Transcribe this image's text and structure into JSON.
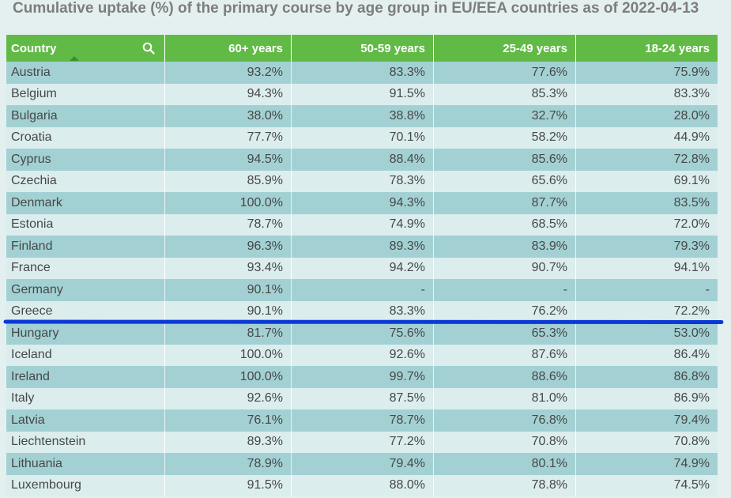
{
  "chart_data": {
    "type": "table",
    "title": "Cumulative uptake (%) of the primary course by age group in EU/EEA countries as of 2022-04-13",
    "columns": [
      "Country",
      "60+ years",
      "50-59 years",
      "25-49 years",
      "18-24 years"
    ],
    "rows": [
      [
        "Austria",
        "93.2%",
        "83.3%",
        "77.6%",
        "75.9%"
      ],
      [
        "Belgium",
        "94.3%",
        "91.5%",
        "85.3%",
        "83.3%"
      ],
      [
        "Bulgaria",
        "38.0%",
        "38.8%",
        "32.7%",
        "28.0%"
      ],
      [
        "Croatia",
        "77.7%",
        "70.1%",
        "58.2%",
        "44.9%"
      ],
      [
        "Cyprus",
        "94.5%",
        "88.4%",
        "85.6%",
        "72.8%"
      ],
      [
        "Czechia",
        "85.9%",
        "78.3%",
        "65.6%",
        "69.1%"
      ],
      [
        "Denmark",
        "100.0%",
        "94.3%",
        "87.7%",
        "83.5%"
      ],
      [
        "Estonia",
        "78.7%",
        "74.9%",
        "68.5%",
        "72.0%"
      ],
      [
        "Finland",
        "96.3%",
        "89.3%",
        "83.9%",
        "79.3%"
      ],
      [
        "France",
        "93.4%",
        "94.2%",
        "90.7%",
        "94.1%"
      ],
      [
        "Germany",
        "90.1%",
        "-",
        "-",
        "-"
      ],
      [
        "Greece",
        "90.1%",
        "83.3%",
        "76.2%",
        "72.2%"
      ],
      [
        "Hungary",
        "81.7%",
        "75.6%",
        "65.3%",
        "53.0%"
      ],
      [
        "Iceland",
        "100.0%",
        "92.6%",
        "87.6%",
        "86.4%"
      ],
      [
        "Ireland",
        "100.0%",
        "99.7%",
        "88.6%",
        "86.8%"
      ],
      [
        "Italy",
        "92.6%",
        "87.5%",
        "81.0%",
        "86.9%"
      ],
      [
        "Latvia",
        "76.1%",
        "78.7%",
        "76.8%",
        "79.4%"
      ],
      [
        "Liechtenstein",
        "89.3%",
        "77.2%",
        "70.8%",
        "70.8%"
      ],
      [
        "Lithuania",
        "78.9%",
        "79.4%",
        "80.1%",
        "74.9%"
      ],
      [
        "Luxembourg",
        "91.5%",
        "88.0%",
        "78.8%",
        "74.5%"
      ]
    ]
  },
  "colors": {
    "header_bg": "#62ba46",
    "row_odd": "#a3d1d3",
    "row_even": "#dcedee",
    "marker_line": "#0a3ad6",
    "title_text": "#7d7d7d"
  },
  "icons": {
    "search": "search-icon",
    "sort": "sort-ascending-icon"
  }
}
